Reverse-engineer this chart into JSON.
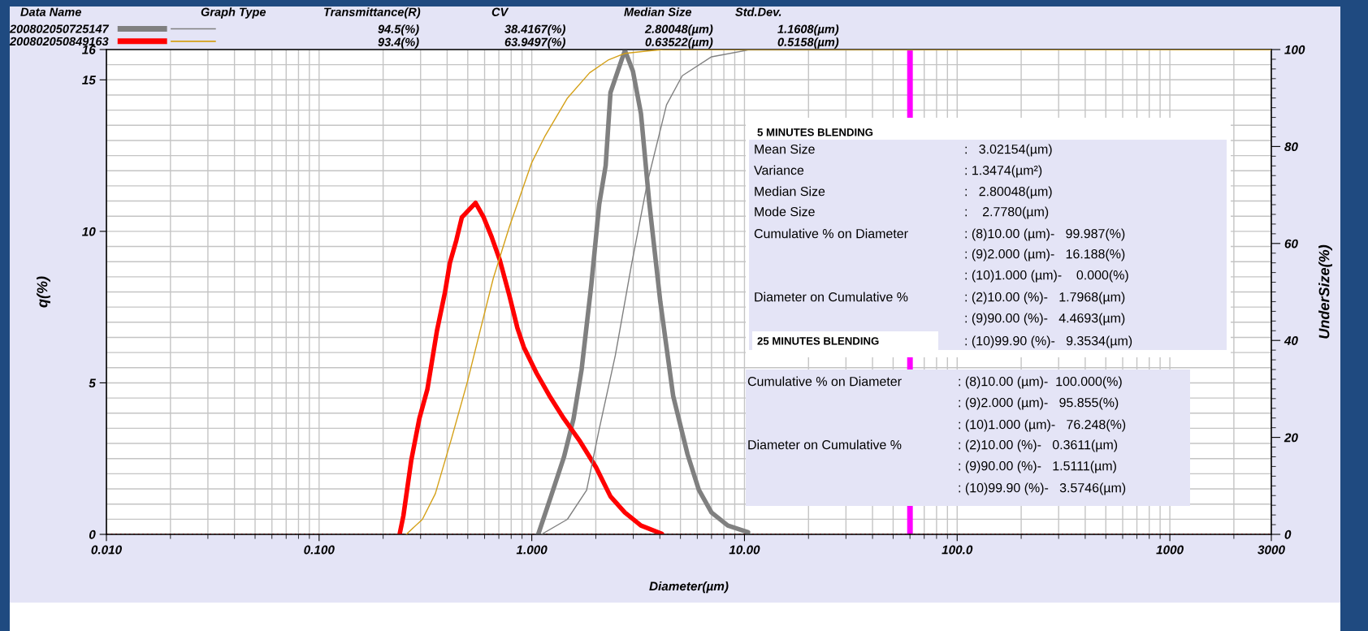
{
  "chart_data": {
    "type": "line",
    "xlabel": "Diameter(µm)",
    "ylabel": "q(%)",
    "y2label": "UnderSize(%)",
    "log": "x",
    "grid": true,
    "legend": "top left",
    "xlim": [
      0.01,
      3000
    ],
    "xticks": [
      {
        "value": 0.01,
        "label": "0.010"
      },
      {
        "value": 0.1,
        "label": "0.100"
      },
      {
        "value": 1,
        "label": "1.000"
      },
      {
        "value": 10,
        "label": "10.00"
      },
      {
        "value": 100,
        "label": "100.0"
      },
      1000,
      3000
    ],
    "ylim": [
      0,
      16
    ],
    "yticks": [
      0,
      5,
      10,
      15,
      16
    ],
    "y2lim": [
      0,
      100
    ],
    "y2ticks": [
      0,
      20,
      40,
      60,
      80,
      100
    ],
    "series": [
      {
        "name": "200802050725147",
        "color": "#808080",
        "x": [
          1.072,
          1.23,
          1.415,
          1.572,
          1.714,
          1.903,
          2.075,
          2.225,
          2.344,
          2.74,
          2.99,
          3.26,
          3.56,
          4.02,
          4.62,
          5.4,
          6.1,
          7.0,
          8.35,
          10.4
        ],
        "values": [
          0,
          1.25,
          2.54,
          3.82,
          5.43,
          8.21,
          10.89,
          12.17,
          14.58,
          15.97,
          15.28,
          13.89,
          11.0,
          7.68,
          4.57,
          2.64,
          1.47,
          0.72,
          0.29,
          0.07
        ]
      },
      {
        "name": "200802050849163",
        "color": "#ff0000",
        "x": [
          0.239,
          0.249,
          0.271,
          0.296,
          0.323,
          0.358,
          0.391,
          0.412,
          0.442,
          0.469,
          0.544,
          0.594,
          0.647,
          0.706,
          0.784,
          0.855,
          0.917,
          1.053,
          1.211,
          1.415,
          1.685,
          2.003,
          2.345,
          2.74,
          3.26,
          4.09
        ],
        "values": [
          0,
          0.61,
          2.43,
          3.82,
          4.79,
          6.71,
          8.0,
          8.96,
          9.71,
          10.46,
          10.94,
          10.46,
          9.82,
          9.07,
          7.89,
          6.82,
          6.18,
          5.32,
          4.57,
          3.82,
          3.07,
          2.22,
          1.25,
          0.72,
          0.29,
          0.02
        ]
      },
      {
        "axis": "y2",
        "color": "#808080",
        "x": [
          1.11,
          1.47,
          1.81,
          2.075,
          2.47,
          2.94,
          3.5,
          4.3,
          5.1,
          7.0,
          10.4,
          3000
        ],
        "values": [
          0,
          3.1,
          9.1,
          21.7,
          36.9,
          55.5,
          72.7,
          88.6,
          94.6,
          98.5,
          99.9,
          100
        ]
      },
      {
        "axis": "y2",
        "color": "#d4a017",
        "x": [
          0.257,
          0.306,
          0.352,
          0.419,
          0.499,
          0.573,
          0.659,
          0.784,
          1.0,
          1.149,
          1.466,
          1.87,
          2.3,
          2.74,
          3.5,
          4.16,
          3000
        ],
        "values": [
          0,
          3.1,
          8.4,
          19.7,
          31.6,
          42.2,
          52.8,
          63.4,
          76.7,
          82.0,
          89.9,
          95.2,
          97.9,
          99.2,
          99.7,
          100,
          100
        ]
      }
    ],
    "ref_lines": [
      {
        "axis": "x",
        "value": 60,
        "color": "#ff00ff",
        "line_style": "solid"
      },
      {
        "axis": "y",
        "value": 0,
        "color": "#ff0000",
        "line_style": "dotted"
      }
    ],
    "annotations": [
      "Data Name",
      "Graph Type",
      "Transmittance(R)",
      "CV",
      "Median Size",
      "Std.Dev.",
      "94.5(%)",
      "38.4167(%)",
      "2.80048(µm)",
      "1.1608(µm)",
      "93.4(%)",
      "63.9497(%)",
      "0.63522(µm)",
      "0.5158(µm)",
      "5 MINUTES BLENDING",
      "Mean Size",
      "Variance",
      "Median Size",
      "Mode Size",
      "Cumulative % on Diameter",
      "Diameter on Cumulative %",
      ":   3.02154(µm)",
      ": 1.3474(µm²)",
      ":   2.80048(µm)",
      ":    2.7780(µm)",
      ": (8)10.00 (µm)-   99.987(%)",
      ": (9)2.000 (µm)-   16.188(%)",
      ": (10)1.000 (µm)-    0.000(%)",
      ": (2)10.00 (%)-   1.7968(µm)",
      ": (9)90.00 (%)-   4.4693(µm)",
      ": (10)99.90 (%)-   9.3534(µm)",
      "25 MINUTES BLENDING",
      "Cumulative % on Diameter",
      "Diameter on Cumulative %",
      ": (8)10.00 (µm)-  100.000(%)",
      ": (9)2.000 (µm)-   95.855(%)",
      ": (10)1.000 (µm)-   76.248(%)",
      ": (2)10.00 (%)-   0.3611(µm)",
      ": (9)90.00 (%)-   1.5111(µm)",
      ": (10)99.90 (%)-   3.5746(µm)"
    ]
  }
}
